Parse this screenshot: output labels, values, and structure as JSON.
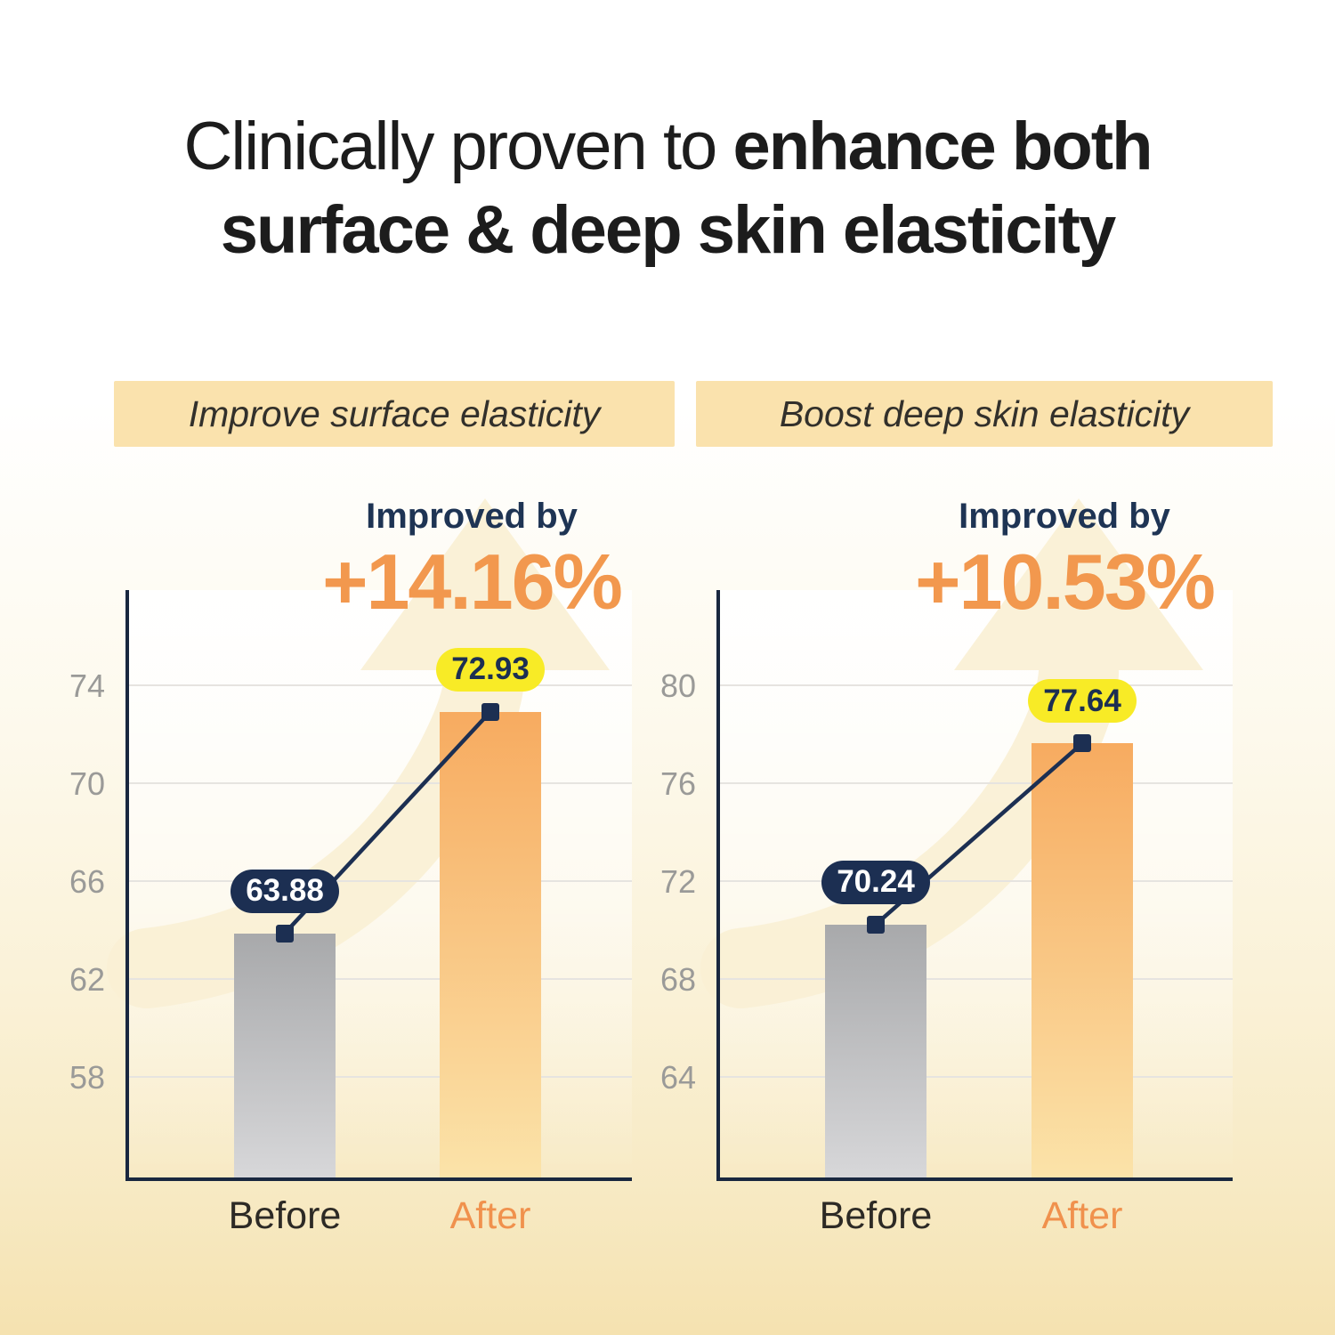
{
  "title": {
    "line1_regular": "Clinically proven to",
    "line1_bold": "enhance both",
    "line2_bold": "surface & deep skin elasticity"
  },
  "colors": {
    "accent_orange": "#F2984E",
    "navy": "#1C2F52",
    "pill_yellow": "#F8EB26",
    "panel_header_bg": "#FAE2AD",
    "bar_gray_top": "#A8A9AB",
    "bar_gray_bottom": "#D7D7D9",
    "bar_orange_top": "#F7AB60",
    "bar_orange_bottom": "#FBE3A9",
    "after_label_orange": "#F0914D",
    "axis_navy": "#19273F",
    "tick_gray": "#9A9A98",
    "watermark_arrow": "#FAF0D4"
  },
  "chart_data": [
    {
      "type": "bar",
      "panel_label": "Improve surface elasticity",
      "annotation_prefix": "Improved by",
      "annotation_value": "+14.16%",
      "categories": [
        "Before",
        "After"
      ],
      "values": [
        63.88,
        72.93
      ],
      "value_labels": [
        "63.88",
        "72.93"
      ],
      "yticks": [
        74,
        70,
        66,
        62,
        58
      ],
      "ylim": [
        53.9,
        77.9
      ],
      "grid": true,
      "legend": "none",
      "trend": "line-with-square-markers",
      "bar_styles": [
        "gray",
        "orange"
      ]
    },
    {
      "type": "bar",
      "panel_label": "Boost deep skin elasticity",
      "annotation_prefix": "Improved by",
      "annotation_value": "+10.53%",
      "categories": [
        "Before",
        "After"
      ],
      "values": [
        70.24,
        77.64
      ],
      "value_labels": [
        "70.24",
        "77.64"
      ],
      "yticks": [
        80,
        76,
        72,
        68,
        64
      ],
      "ylim": [
        59.9,
        83.9
      ],
      "grid": true,
      "legend": "none",
      "trend": "line-with-square-markers",
      "bar_styles": [
        "gray",
        "orange"
      ]
    }
  ]
}
